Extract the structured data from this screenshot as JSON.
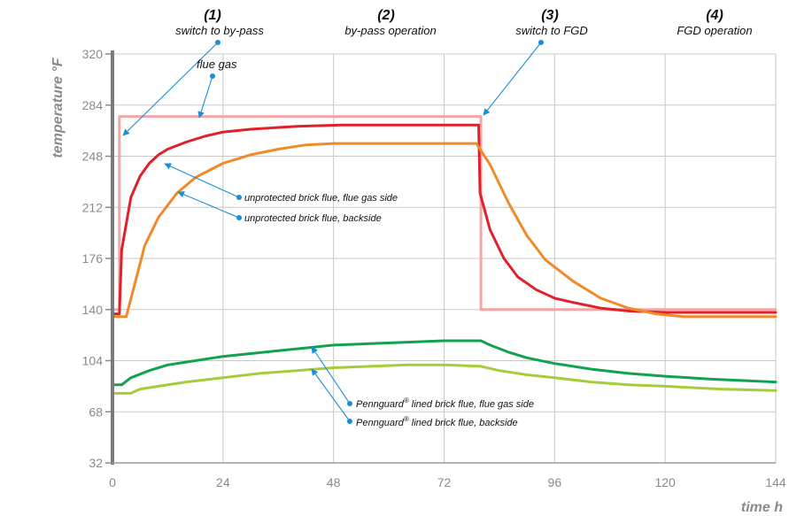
{
  "chart_data": {
    "type": "line",
    "xlabel": "time h",
    "ylabel": "temperature °F",
    "xlim": [
      0,
      144
    ],
    "ylim": [
      32,
      320
    ],
    "xticks": [
      0,
      24,
      48,
      72,
      96,
      120,
      144
    ],
    "yticks": [
      32,
      68,
      104,
      140,
      176,
      212,
      248,
      284,
      320
    ],
    "grid": true,
    "phases": [
      {
        "num": "(1)",
        "name": "switch to by-pass"
      },
      {
        "num": "(2)",
        "name": "by-pass operation"
      },
      {
        "num": "(3)",
        "name": "switch to FGD"
      },
      {
        "num": "(4)",
        "name": "FGD operation"
      }
    ],
    "series": [
      {
        "label": "flue gas",
        "color": "#f4a6a6",
        "points": [
          [
            0,
            140
          ],
          [
            1.5,
            140
          ],
          [
            1.5,
            276
          ],
          [
            80,
            276
          ],
          [
            80,
            140
          ],
          [
            144,
            140
          ]
        ]
      },
      {
        "label": "unprotected brick flue, flue gas side",
        "color": "#e0202a",
        "points": [
          [
            0,
            137
          ],
          [
            1.5,
            137
          ],
          [
            2,
            182
          ],
          [
            4,
            219
          ],
          [
            6,
            234
          ],
          [
            8,
            243
          ],
          [
            10,
            249
          ],
          [
            12,
            253
          ],
          [
            16,
            258
          ],
          [
            20,
            262
          ],
          [
            24,
            265
          ],
          [
            30,
            267
          ],
          [
            40,
            269
          ],
          [
            50,
            270
          ],
          [
            79.5,
            270
          ],
          [
            79.8,
            222
          ],
          [
            82,
            196
          ],
          [
            85,
            176
          ],
          [
            88,
            163
          ],
          [
            92,
            154
          ],
          [
            96,
            148
          ],
          [
            100,
            145
          ],
          [
            106,
            141
          ],
          [
            112,
            139
          ],
          [
            120,
            138
          ],
          [
            144,
            138
          ]
        ]
      },
      {
        "label": "unprotected brick flue, backside",
        "color": "#f08a28",
        "points": [
          [
            0,
            135
          ],
          [
            3,
            135
          ],
          [
            5,
            160
          ],
          [
            7,
            185
          ],
          [
            10,
            205
          ],
          [
            14,
            222
          ],
          [
            18,
            233
          ],
          [
            24,
            243
          ],
          [
            30,
            249
          ],
          [
            36,
            253
          ],
          [
            42,
            256
          ],
          [
            48,
            257
          ],
          [
            79,
            257
          ],
          [
            82,
            242
          ],
          [
            86,
            215
          ],
          [
            90,
            192
          ],
          [
            94,
            175
          ],
          [
            100,
            160
          ],
          [
            106,
            148
          ],
          [
            112,
            141
          ],
          [
            118,
            137
          ],
          [
            124,
            135
          ],
          [
            130,
            135
          ],
          [
            144,
            135
          ]
        ]
      },
      {
        "label": "Pennguard lined brick flue, flue gas side",
        "color": "#10a24f",
        "points": [
          [
            0,
            87
          ],
          [
            2,
            87
          ],
          [
            4,
            92
          ],
          [
            8,
            97
          ],
          [
            12,
            101
          ],
          [
            18,
            104
          ],
          [
            24,
            107
          ],
          [
            30,
            109
          ],
          [
            36,
            111
          ],
          [
            42,
            113
          ],
          [
            48,
            115
          ],
          [
            56,
            116
          ],
          [
            64,
            117
          ],
          [
            72,
            118
          ],
          [
            80,
            118
          ],
          [
            82,
            115
          ],
          [
            86,
            110
          ],
          [
            90,
            106
          ],
          [
            96,
            102
          ],
          [
            104,
            98
          ],
          [
            112,
            95
          ],
          [
            120,
            93
          ],
          [
            130,
            91
          ],
          [
            144,
            89
          ]
        ]
      },
      {
        "label": "Pennguard lined brick flue, backside",
        "color": "#a6cc3a",
        "points": [
          [
            0,
            81
          ],
          [
            4,
            81
          ],
          [
            6,
            84
          ],
          [
            10,
            86
          ],
          [
            16,
            89
          ],
          [
            24,
            92
          ],
          [
            32,
            95
          ],
          [
            40,
            97
          ],
          [
            48,
            99
          ],
          [
            56,
            100
          ],
          [
            64,
            101
          ],
          [
            72,
            101
          ],
          [
            80,
            100
          ],
          [
            84,
            97
          ],
          [
            90,
            94
          ],
          [
            96,
            92
          ],
          [
            104,
            89
          ],
          [
            112,
            87
          ],
          [
            120,
            86
          ],
          [
            132,
            84
          ],
          [
            144,
            83
          ]
        ]
      }
    ],
    "annotations": {
      "flue_gas": "flue gas",
      "unprot_gas": "unprotected brick flue, flue gas side",
      "unprot_back": "unprotected brick flue, backside",
      "penn_prefix": "Pennguard",
      "penn_sup": "®",
      "penn_gas_rest": " lined brick flue, flue gas side",
      "penn_back_rest": " lined brick flue, backside"
    }
  }
}
